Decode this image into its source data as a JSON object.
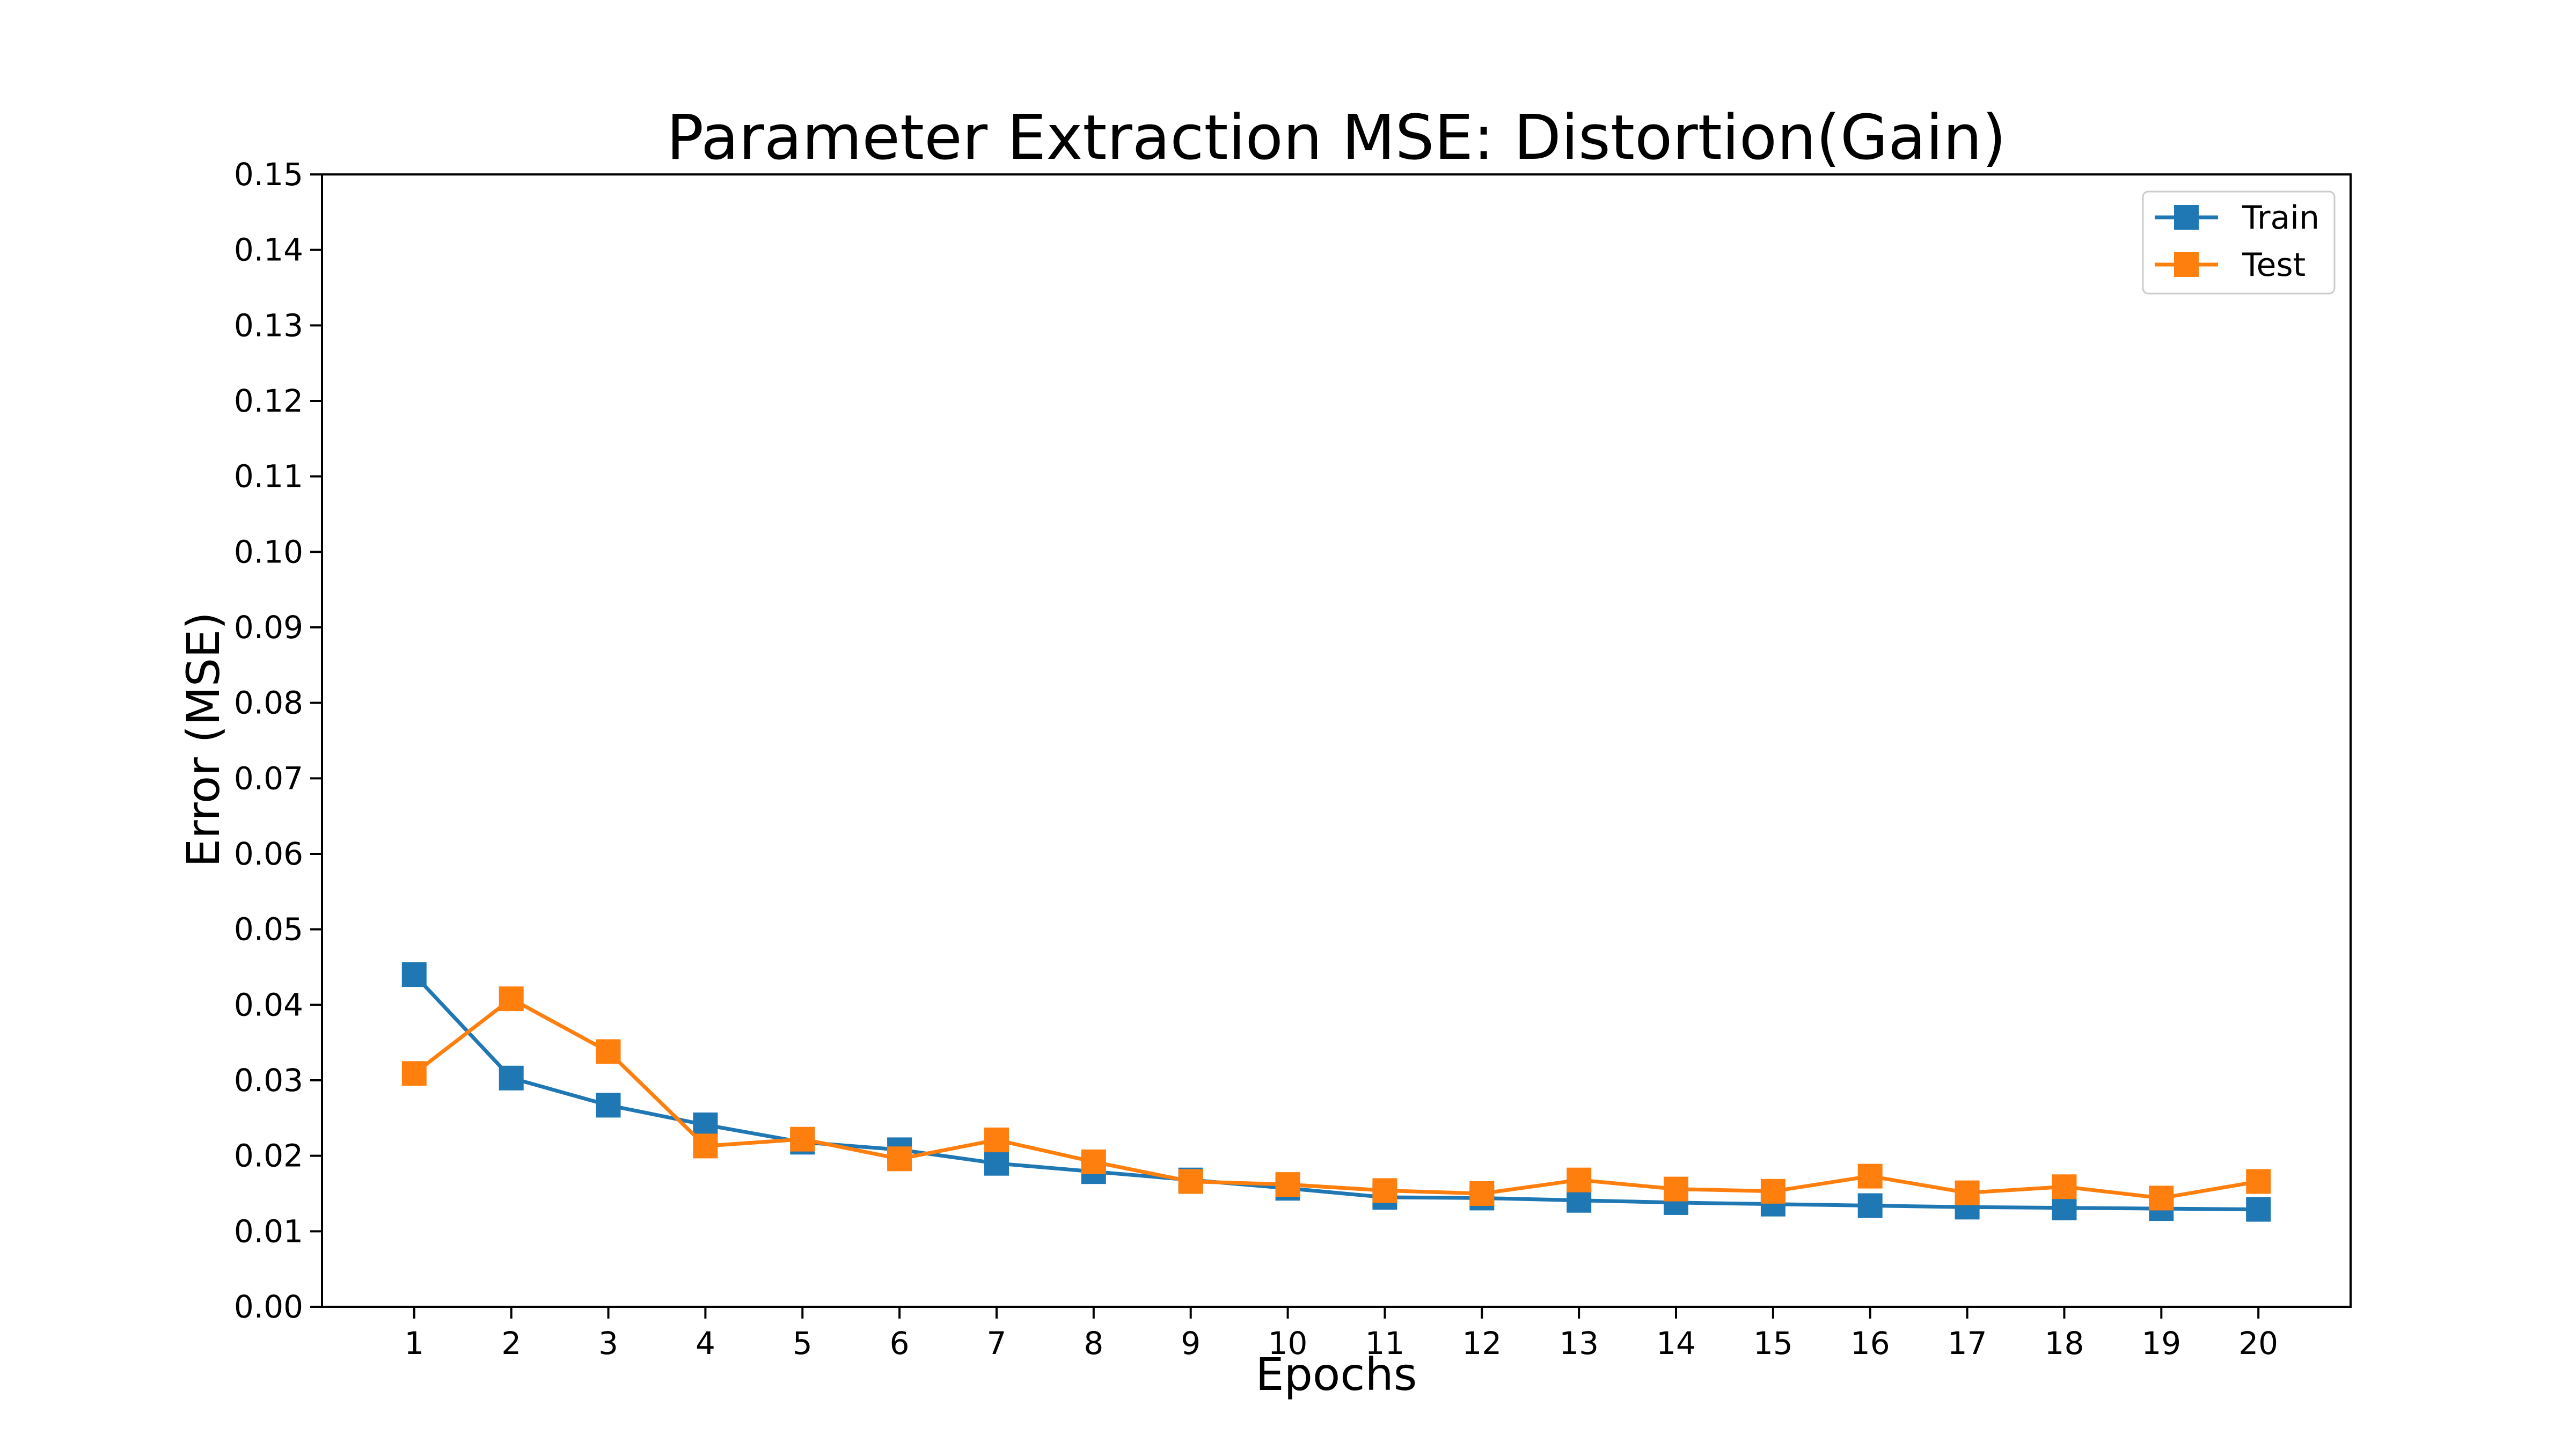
{
  "chart_data": {
    "type": "line",
    "title": "Parameter Extraction MSE: Distortion(Gain)",
    "xlabel": "Epochs",
    "ylabel": "Error (MSE)",
    "x": [
      1,
      2,
      3,
      4,
      5,
      6,
      7,
      8,
      9,
      10,
      11,
      12,
      13,
      14,
      15,
      16,
      17,
      18,
      19,
      20
    ],
    "xlim": [
      0.05,
      20.95
    ],
    "ylim": [
      0,
      0.15
    ],
    "yticks": [
      "0.00",
      "0.01",
      "0.02",
      "0.03",
      "0.04",
      "0.05",
      "0.06",
      "0.07",
      "0.08",
      "0.09",
      "0.10",
      "0.11",
      "0.12",
      "0.13",
      "0.14",
      "0.15"
    ],
    "yticks_values": [
      0,
      0.01,
      0.02,
      0.03,
      0.04,
      0.05,
      0.06,
      0.07,
      0.08,
      0.09,
      0.1,
      0.11,
      0.12,
      0.13,
      0.14,
      0.15
    ],
    "grid": false,
    "legend_position": "top-right",
    "series": [
      {
        "name": "Train",
        "color": "#1f77b4",
        "marker": "square",
        "values": [
          0.044,
          0.0303,
          0.0267,
          0.0241,
          0.0218,
          0.0208,
          0.019,
          0.0179,
          0.0168,
          0.0157,
          0.0145,
          0.0144,
          0.0141,
          0.0138,
          0.0136,
          0.0134,
          0.0132,
          0.0131,
          0.013,
          0.0129
        ]
      },
      {
        "name": "Test",
        "color": "#ff7f0e",
        "marker": "square",
        "values": [
          0.0309,
          0.0408,
          0.0338,
          0.0213,
          0.0222,
          0.0196,
          0.0221,
          0.0192,
          0.0166,
          0.0162,
          0.0154,
          0.015,
          0.0168,
          0.0156,
          0.0153,
          0.0173,
          0.0151,
          0.0159,
          0.0144,
          0.0166
        ]
      }
    ]
  }
}
